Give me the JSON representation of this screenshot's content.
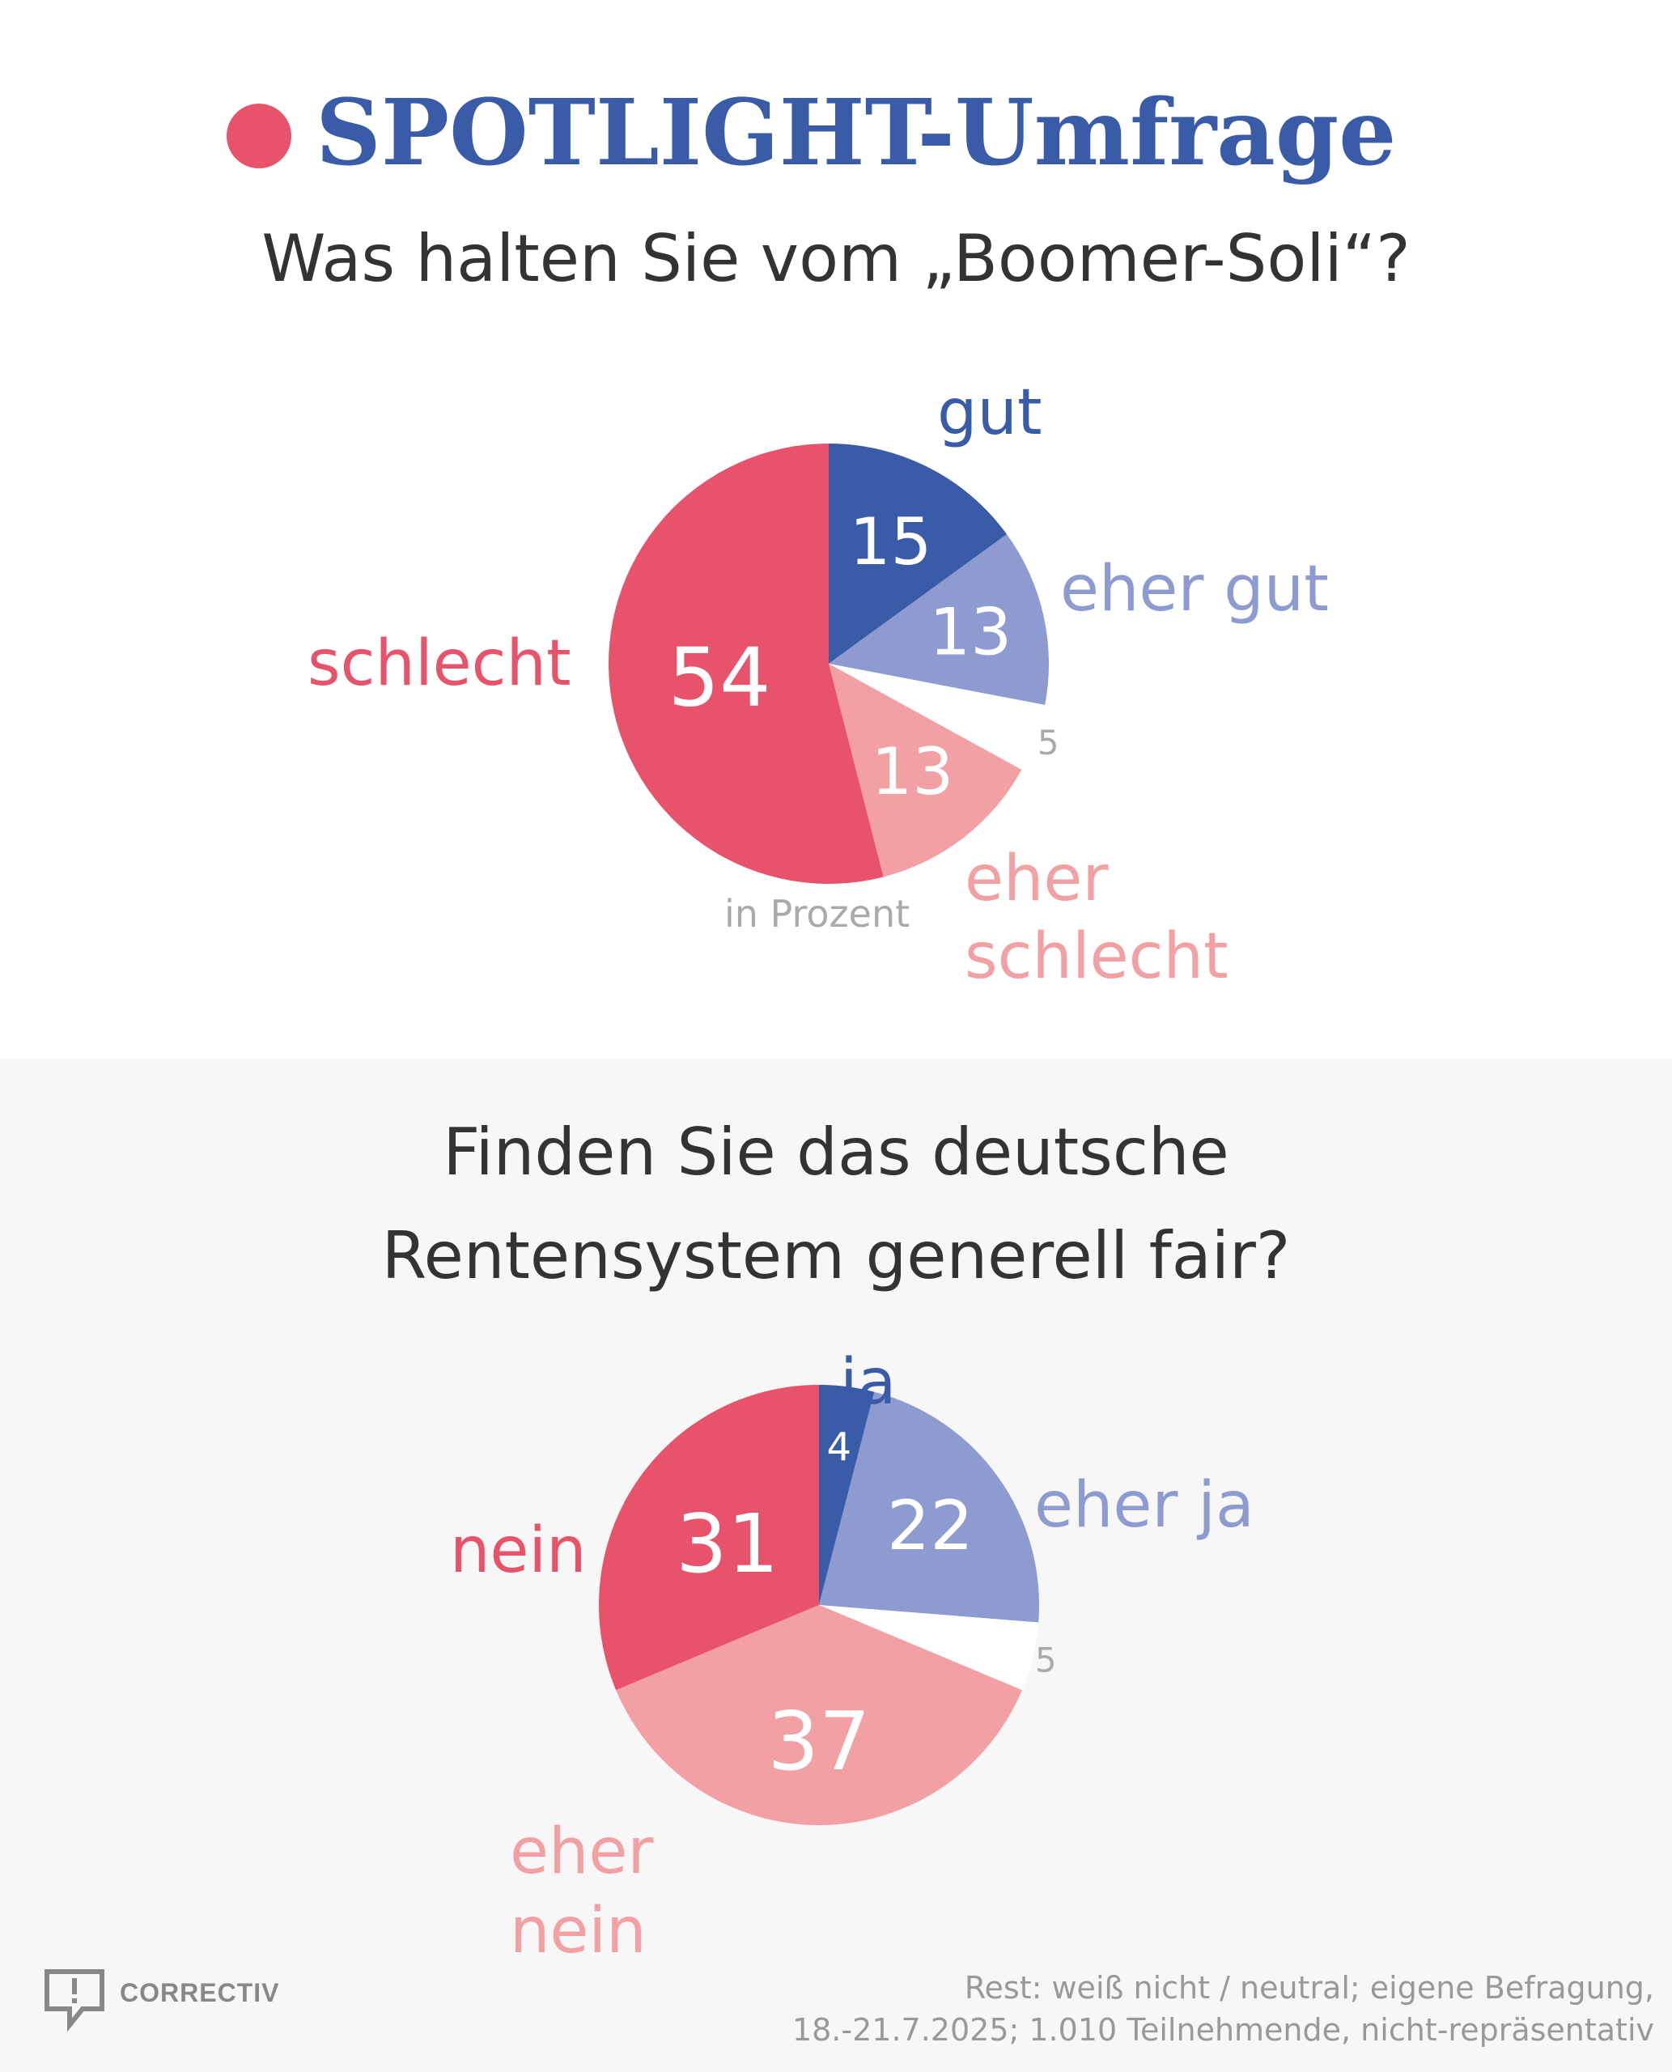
{
  "header": {
    "brand": "SPOTLIGHT-Umfrage"
  },
  "chart_data": [
    {
      "type": "pie",
      "title": "Was halten Sie vom „Boomer-Soli“?",
      "unit_note": "in Prozent",
      "slices": [
        {
          "label": "gut",
          "value": 15,
          "color": "#3a5ca8",
          "label_color": "#3a5ca8",
          "value_color": "#ffffff"
        },
        {
          "label": "eher gut",
          "value": 13,
          "color": "#8e9bd0",
          "label_color": "#8e9bd0",
          "value_color": "#ffffff"
        },
        {
          "label": "",
          "value": 5,
          "color": "#ffffff",
          "label_color": "#aaaaaa",
          "value_color": "#aaaaaa"
        },
        {
          "label": "eher schlecht",
          "value": 13,
          "color": "#f2a0a3",
          "label_color": "#f2a0a3",
          "value_color": "#ffffff"
        },
        {
          "label": "schlecht",
          "value": 54,
          "color": "#e8536b",
          "label_color": "#e8536b",
          "value_color": "#ffffff"
        }
      ]
    },
    {
      "type": "pie",
      "title": "Finden Sie das deutsche Rentensystem generell fair?",
      "slices": [
        {
          "label": "ja",
          "value": 4,
          "color": "#3a5ca8",
          "label_color": "#3a5ca8",
          "value_color": "#ffffff"
        },
        {
          "label": "eher ja",
          "value": 22,
          "color": "#8e9bd0",
          "label_color": "#8e9bd0",
          "value_color": "#ffffff"
        },
        {
          "label": "",
          "value": 5,
          "color": "#ffffff",
          "label_color": "#aaaaaa",
          "value_color": "#aaaaaa"
        },
        {
          "label": "eher nein",
          "value": 37,
          "color": "#f2a0a3",
          "label_color": "#f2a0a3",
          "value_color": "#ffffff"
        },
        {
          "label": "nein",
          "value": 31,
          "color": "#e8536b",
          "label_color": "#e8536b",
          "value_color": "#ffffff"
        }
      ]
    }
  ],
  "labels1": {
    "gut": "gut",
    "eher_gut": "eher gut",
    "eher_schlecht_1": "eher",
    "eher_schlecht_2": "schlecht",
    "schlecht": "schlecht"
  },
  "labels2": {
    "ja": "ja",
    "eher_ja": "eher ja",
    "eher_nein_1": "eher",
    "eher_nein_2": "nein",
    "nein": "nein"
  },
  "question2": {
    "line1": "Finden Sie das deutsche",
    "line2": "Rentensystem generell fair?"
  },
  "footer": {
    "logo_text": "CORRECTIV",
    "source_line1": "Rest: weiß nicht / neutral; eigene Befragung,",
    "source_line2": "18.-21.7.2025; 1.010 Teilnehmende, nicht-repräsentativ"
  }
}
